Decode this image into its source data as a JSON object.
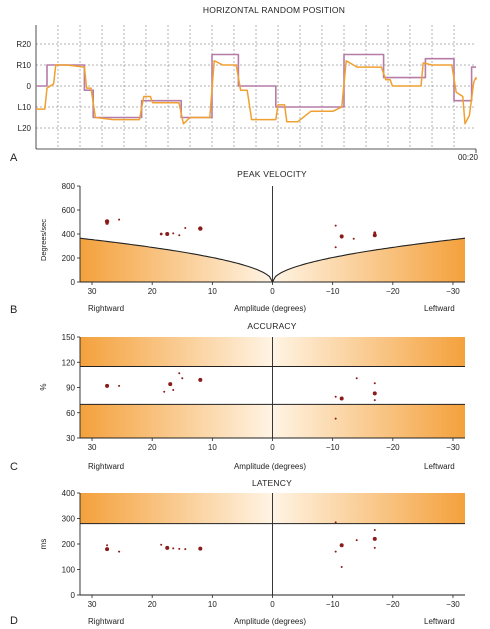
{
  "colors": {
    "orange": "#f0a030",
    "pink": "#b67ba6",
    "dot": "#8b1a1a",
    "band_light": "#fff2de",
    "band_dark": "#f4a13c"
  },
  "chart_data": [
    {
      "panel": "A",
      "type": "line",
      "title": "HORIZONTAL RANDOM POSITION",
      "y_ticks": [
        "L20",
        "L10",
        "0",
        "R10",
        "R20"
      ],
      "y_values": [
        -20,
        -10,
        0,
        10,
        20
      ],
      "ylim": [
        -25,
        24
      ],
      "x_end_label": "00:20",
      "xlim": [
        0,
        20
      ],
      "series": [
        {
          "role": "target",
          "points": [
            [
              0.0,
              0
            ],
            [
              0.5,
              0
            ],
            [
              0.5,
              10
            ],
            [
              2.2,
              10
            ],
            [
              2.2,
              -2
            ],
            [
              2.6,
              -2
            ],
            [
              2.6,
              -15
            ],
            [
              4.8,
              -15
            ],
            [
              4.8,
              -7
            ],
            [
              6.6,
              -7
            ],
            [
              6.6,
              -15
            ],
            [
              8.0,
              -15
            ],
            [
              8.0,
              15
            ],
            [
              9.2,
              15
            ],
            [
              9.2,
              0
            ],
            [
              10.9,
              0
            ],
            [
              10.9,
              -10
            ],
            [
              14.0,
              -10
            ],
            [
              14.0,
              15
            ],
            [
              15.8,
              15
            ],
            [
              15.8,
              4
            ],
            [
              17.7,
              4
            ],
            [
              17.7,
              13
            ],
            [
              19.0,
              13
            ],
            [
              19.0,
              -7
            ],
            [
              19.8,
              -7
            ],
            [
              19.8,
              9
            ],
            [
              21.0,
              9
            ]
          ]
        },
        {
          "role": "eye",
          "points": [
            [
              0.0,
              -11
            ],
            [
              0.4,
              -11
            ],
            [
              0.5,
              -1
            ],
            [
              0.8,
              1
            ],
            [
              0.9,
              10
            ],
            [
              1.4,
              10
            ],
            [
              2.2,
              9
            ],
            [
              2.3,
              -1
            ],
            [
              2.5,
              -1
            ],
            [
              2.7,
              -15
            ],
            [
              3.5,
              -16
            ],
            [
              4.7,
              -16
            ],
            [
              4.9,
              -5
            ],
            [
              5.2,
              -5
            ],
            [
              5.3,
              -8
            ],
            [
              6.5,
              -8
            ],
            [
              6.7,
              -18
            ],
            [
              7.0,
              -15
            ],
            [
              7.9,
              -15
            ],
            [
              8.1,
              12
            ],
            [
              8.5,
              10
            ],
            [
              9.1,
              10
            ],
            [
              9.3,
              -2
            ],
            [
              9.6,
              -2
            ],
            [
              9.8,
              -16
            ],
            [
              10.9,
              -16
            ],
            [
              11.0,
              -9
            ],
            [
              11.3,
              -9
            ],
            [
              11.4,
              -17
            ],
            [
              11.9,
              -17
            ],
            [
              12.5,
              -12
            ],
            [
              13.5,
              -12
            ],
            [
              13.9,
              -10
            ],
            [
              14.1,
              12
            ],
            [
              14.6,
              9
            ],
            [
              15.7,
              9
            ],
            [
              15.9,
              3
            ],
            [
              16.1,
              3
            ],
            [
              16.2,
              0
            ],
            [
              17.5,
              0
            ],
            [
              17.6,
              11
            ],
            [
              18.0,
              10
            ],
            [
              18.9,
              10
            ],
            [
              19.1,
              -3
            ],
            [
              19.4,
              -5
            ],
            [
              19.5,
              -18
            ],
            [
              19.7,
              -14
            ],
            [
              19.9,
              2
            ],
            [
              20.5,
              4
            ],
            [
              21.0,
              3
            ]
          ]
        }
      ]
    },
    {
      "panel": "B",
      "type": "scatter",
      "title": "PEAK VELOCITY",
      "xlabel": "Amplitude (degrees)",
      "ylabel": "Degrees/sec",
      "xlim": [
        32,
        -32
      ],
      "ylim": [
        0,
        800
      ],
      "x_ticks": [
        30,
        20,
        10,
        0,
        -10,
        -20,
        -30
      ],
      "y_ticks": [
        0,
        200,
        400,
        600,
        800
      ],
      "left_label": "Rightward",
      "right_label": "Leftward",
      "band_curve": {
        "k": 64.5,
        "exponent": 0.5
      },
      "points": [
        {
          "x": 27.5,
          "y": 505,
          "size": 2.2
        },
        {
          "x": 27.5,
          "y": 490,
          "size": 1.6
        },
        {
          "x": 25.5,
          "y": 520,
          "size": 1.0
        },
        {
          "x": 18.5,
          "y": 400,
          "size": 1.4
        },
        {
          "x": 17.5,
          "y": 400,
          "size": 2.0
        },
        {
          "x": 16.5,
          "y": 405,
          "size": 1.0
        },
        {
          "x": 15.5,
          "y": 390,
          "size": 1.0
        },
        {
          "x": 14.5,
          "y": 450,
          "size": 1.0
        },
        {
          "x": 12.0,
          "y": 445,
          "size": 2.2
        },
        {
          "x": -10.5,
          "y": 470,
          "size": 1.0
        },
        {
          "x": -10.5,
          "y": 290,
          "size": 1.0
        },
        {
          "x": -11.5,
          "y": 380,
          "size": 2.0
        },
        {
          "x": -11.5,
          "y": 370,
          "size": 1.0
        },
        {
          "x": -13.5,
          "y": 360,
          "size": 1.0
        },
        {
          "x": -17.0,
          "y": 410,
          "size": 1.4
        },
        {
          "x": -17.0,
          "y": 390,
          "size": 2.0
        }
      ]
    },
    {
      "panel": "C",
      "type": "scatter",
      "title": "ACCURACY",
      "xlabel": "Amplitude (degrees)",
      "ylabel": "%",
      "xlim": [
        32,
        -32
      ],
      "ylim": [
        30,
        150
      ],
      "x_ticks": [
        30,
        20,
        10,
        0,
        -10,
        -20,
        -30
      ],
      "y_ticks": [
        30,
        60,
        90,
        120,
        150
      ],
      "left_label": "Rightward",
      "right_label": "Leftward",
      "band_lines": [
        70,
        115
      ],
      "points": [
        {
          "x": 27.5,
          "y": 92,
          "size": 2.0
        },
        {
          "x": 25.5,
          "y": 92,
          "size": 1.0
        },
        {
          "x": 18.0,
          "y": 85,
          "size": 1.0
        },
        {
          "x": 17.0,
          "y": 94,
          "size": 2.0
        },
        {
          "x": 16.5,
          "y": 87,
          "size": 1.0
        },
        {
          "x": 15.5,
          "y": 107,
          "size": 1.0
        },
        {
          "x": 15.0,
          "y": 101,
          "size": 1.0
        },
        {
          "x": 12.0,
          "y": 99,
          "size": 2.0
        },
        {
          "x": -10.5,
          "y": 79,
          "size": 1.0
        },
        {
          "x": -10.5,
          "y": 53,
          "size": 1.0
        },
        {
          "x": -11.5,
          "y": 77,
          "size": 2.0
        },
        {
          "x": -14.0,
          "y": 101,
          "size": 1.0
        },
        {
          "x": -17.0,
          "y": 95,
          "size": 1.0
        },
        {
          "x": -17.0,
          "y": 83,
          "size": 2.0
        },
        {
          "x": -17.0,
          "y": 75,
          "size": 1.0
        }
      ]
    },
    {
      "panel": "D",
      "type": "scatter",
      "title": "LATENCY",
      "xlabel": "Amplitude (degrees)",
      "ylabel": "ms",
      "xlim": [
        32,
        -32
      ],
      "ylim": [
        0,
        400
      ],
      "x_ticks": [
        30,
        20,
        10,
        0,
        -10,
        -20,
        -30
      ],
      "y_ticks": [
        0,
        100,
        200,
        300,
        400
      ],
      "left_label": "Rightward",
      "right_label": "Leftward",
      "band_lines": [
        280
      ],
      "points": [
        {
          "x": 27.5,
          "y": 195,
          "size": 1.0
        },
        {
          "x": 27.5,
          "y": 180,
          "size": 2.0
        },
        {
          "x": 25.5,
          "y": 170,
          "size": 1.0
        },
        {
          "x": 18.5,
          "y": 197,
          "size": 1.0
        },
        {
          "x": 17.5,
          "y": 185,
          "size": 2.0
        },
        {
          "x": 16.5,
          "y": 183,
          "size": 1.0
        },
        {
          "x": 15.5,
          "y": 181,
          "size": 1.0
        },
        {
          "x": 14.5,
          "y": 180,
          "size": 1.0
        },
        {
          "x": 12.0,
          "y": 182,
          "size": 2.0
        },
        {
          "x": -10.5,
          "y": 285,
          "size": 1.0
        },
        {
          "x": -10.5,
          "y": 170,
          "size": 1.0
        },
        {
          "x": -11.5,
          "y": 195,
          "size": 2.0
        },
        {
          "x": -11.5,
          "y": 110,
          "size": 1.0
        },
        {
          "x": -14.0,
          "y": 215,
          "size": 1.0
        },
        {
          "x": -17.0,
          "y": 255,
          "size": 1.0
        },
        {
          "x": -17.0,
          "y": 220,
          "size": 2.0
        },
        {
          "x": -17.0,
          "y": 185,
          "size": 1.0
        }
      ]
    }
  ]
}
